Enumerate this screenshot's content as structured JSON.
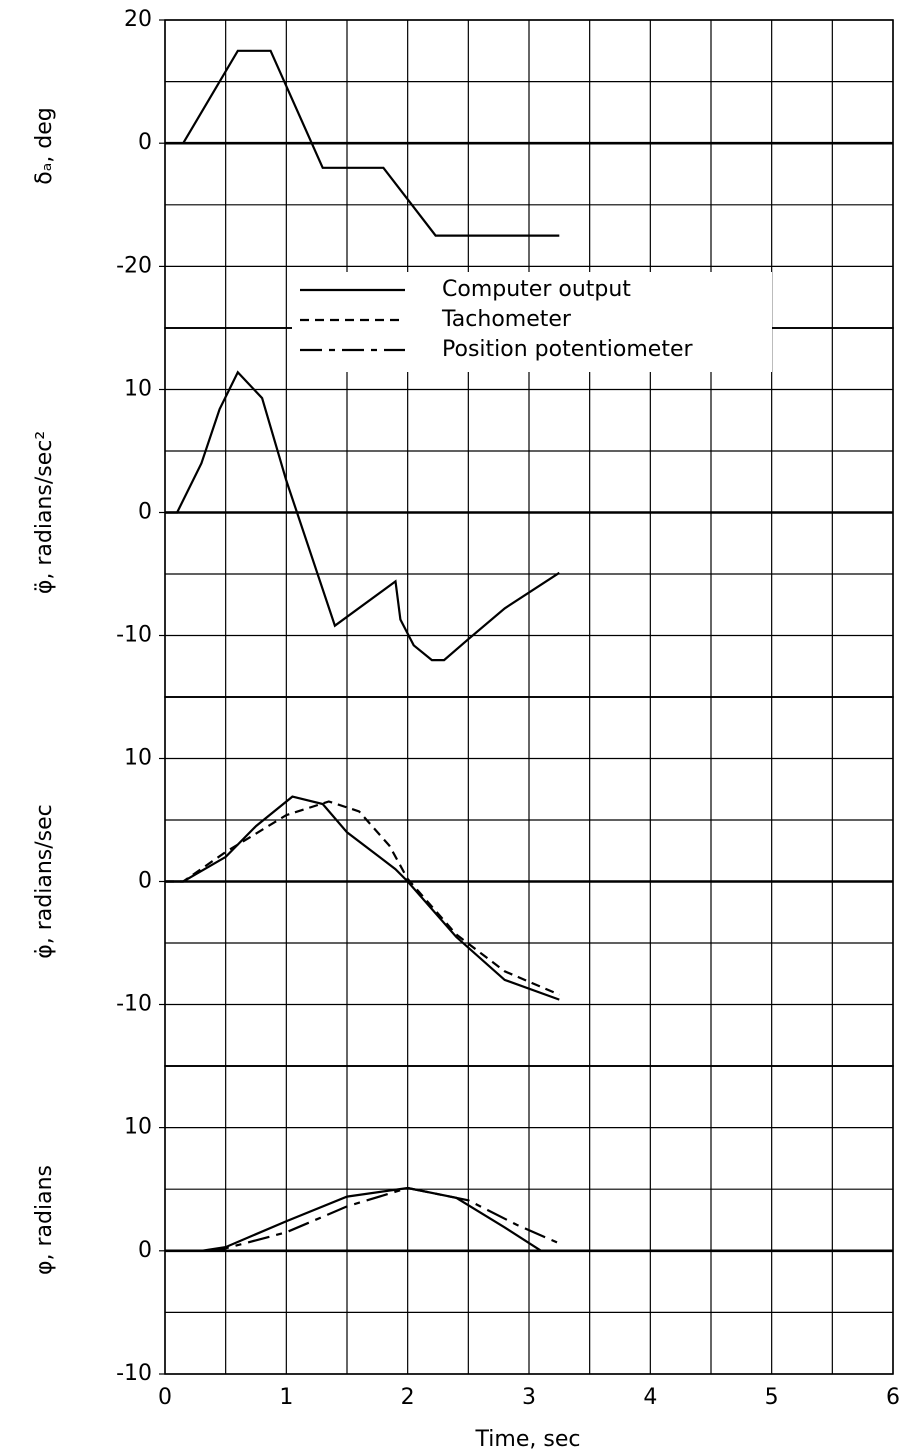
{
  "chart_data": [
    {
      "type": "line",
      "ylabel": "δₐ, deg",
      "xlim": [
        0,
        6
      ],
      "xgrid": [
        0,
        0.5,
        1,
        1.5,
        2,
        2.5,
        3,
        3.5,
        4,
        4.5,
        5,
        5.5,
        6
      ],
      "ylim": [
        -30,
        20
      ],
      "yticks": [
        20,
        0,
        -20
      ],
      "ygrid": [
        20,
        10,
        0,
        -10,
        -20,
        -30
      ],
      "series": [
        {
          "color": "#000000",
          "style": "solid",
          "x": [
            0,
            0.15,
            0.6,
            0.87,
            1.3,
            1.8,
            2.23,
            3.25
          ],
          "values": [
            0,
            0,
            15,
            15,
            -4,
            -4,
            -15,
            -15
          ]
        }
      ]
    },
    {
      "type": "line",
      "ylabel": "φ̈, radians/sec²",
      "xlim": [
        0,
        6
      ],
      "xgrid": [
        0,
        0.5,
        1,
        1.5,
        2,
        2.5,
        3,
        3.5,
        4,
        4.5,
        5,
        5.5,
        6
      ],
      "ylim": [
        -15,
        15
      ],
      "yticks": [
        10,
        0,
        -10
      ],
      "ygrid": [
        15,
        10,
        5,
        0,
        -5,
        -10,
        -15
      ],
      "series": [
        {
          "color": "#000000",
          "style": "solid",
          "x": [
            0,
            0.1,
            0.3,
            0.45,
            0.6,
            0.8,
            1.0,
            1.4,
            1.9,
            1.94,
            2.05,
            2.2,
            2.3,
            2.5,
            2.8,
            3.25
          ],
          "values": [
            0,
            0,
            4,
            8.4,
            11.4,
            9.3,
            2.6,
            -9.2,
            -5.6,
            -8.7,
            -10.8,
            -12,
            -12,
            -10.3,
            -7.8,
            -4.9
          ]
        }
      ]
    },
    {
      "type": "line",
      "ylabel": "φ̇, radians/sec",
      "xlim": [
        0,
        6
      ],
      "xgrid": [
        0,
        0.5,
        1,
        1.5,
        2,
        2.5,
        3,
        3.5,
        4,
        4.5,
        5,
        5.5,
        6
      ],
      "ylim": [
        -15,
        15
      ],
      "yticks": [
        10,
        0,
        -10
      ],
      "ygrid": [
        15,
        10,
        5,
        0,
        -5,
        -10,
        -15
      ],
      "series": [
        {
          "name": "Computer output",
          "color": "#000000",
          "style": "solid",
          "x": [
            0,
            0.15,
            0.5,
            0.75,
            1.05,
            1.3,
            1.5,
            1.9,
            2.0,
            2.4,
            2.8,
            3.25
          ],
          "values": [
            0,
            0,
            2,
            4.5,
            6.9,
            6.3,
            4,
            1,
            0,
            -4.5,
            -8,
            -9.6
          ]
        },
        {
          "name": "Tachometer",
          "color": "#000000",
          "style": "dashed",
          "x": [
            0,
            0.15,
            0.5,
            1.0,
            1.35,
            1.6,
            1.85,
            2.0,
            2.4,
            2.8,
            3.25
          ],
          "values": [
            0,
            0,
            2.4,
            5.4,
            6.5,
            5.7,
            2.9,
            0.2,
            -4.3,
            -7.3,
            -9.2
          ]
        }
      ]
    },
    {
      "type": "line",
      "ylabel": "φ, radians",
      "xlabel": "Time, sec",
      "xlim": [
        0,
        6
      ],
      "xticks": [
        0,
        1,
        2,
        3,
        4,
        5,
        6
      ],
      "xgrid": [
        0,
        0.5,
        1,
        1.5,
        2,
        2.5,
        3,
        3.5,
        4,
        4.5,
        5,
        5.5,
        6
      ],
      "ylim": [
        -10,
        15
      ],
      "yticks": [
        10,
        0,
        -10
      ],
      "ygrid": [
        15,
        10,
        5,
        0,
        -5,
        -10
      ],
      "series": [
        {
          "color": "#000000",
          "style": "solid",
          "x": [
            0,
            0.3,
            0.5,
            1.0,
            1.5,
            2.0,
            2.4,
            2.8,
            3.1
          ],
          "values": [
            0,
            0,
            0.3,
            2.4,
            4.4,
            5.1,
            4.3,
            1.9,
            0
          ]
        },
        {
          "name": "Position potentiometer",
          "color": "#000000",
          "style": "dashdot",
          "x": [
            0,
            0.3,
            0.5,
            1.0,
            1.5,
            2.0,
            2.5,
            2.9,
            3.25
          ],
          "values": [
            0,
            0,
            0.2,
            1.5,
            3.6,
            5.1,
            4.1,
            2.1,
            0.6
          ]
        }
      ]
    }
  ]
}
